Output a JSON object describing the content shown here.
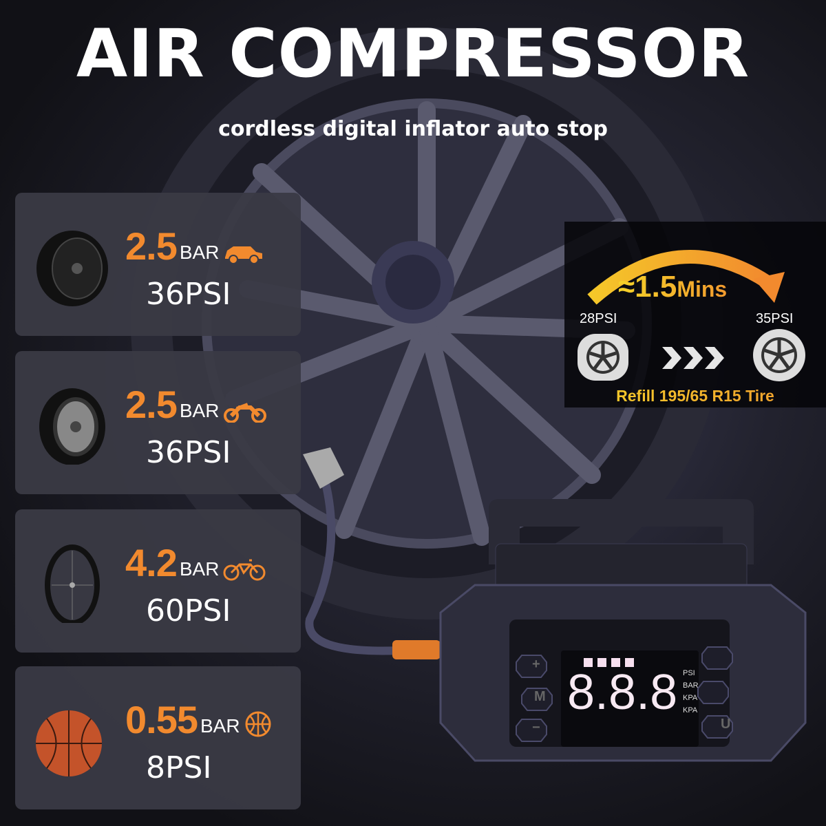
{
  "header": {
    "title": "AIR COMPRESSOR",
    "subtitle": "cordless digital inflator auto stop"
  },
  "cards": [
    {
      "value": "2.5",
      "unit": "BAR",
      "psi": "36PSI",
      "type_icon": "car-icon",
      "image": "car-tire"
    },
    {
      "value": "2.5",
      "unit": "BAR",
      "psi": "36PSI",
      "type_icon": "motorcycle-icon",
      "image": "motorcycle-tire"
    },
    {
      "value": "4.2",
      "unit": "BAR",
      "psi": "60PSI",
      "type_icon": "bicycle-icon",
      "image": "bicycle-wheel"
    },
    {
      "value": "0.55",
      "unit": "BAR",
      "psi": "8PSI",
      "type_icon": "basketball-icon",
      "image": "basketball"
    }
  ],
  "refill_panel": {
    "time_prefix": "≈1.5",
    "time_unit": "Mins",
    "from": "28PSI",
    "to": "35PSI",
    "caption": "Refill 195/65 R15 Tire"
  },
  "device": {
    "display": "8.8.8",
    "units": [
      "PSI",
      "BAR",
      "KPA",
      "KPA"
    ],
    "buttons": {
      "plus": "+",
      "mode": "M",
      "minus": "−",
      "unit": "U"
    }
  },
  "colors": {
    "accent_orange": "#f28a2e",
    "accent_yellow": "#f5d229",
    "card_bg": "#3a3a44"
  }
}
